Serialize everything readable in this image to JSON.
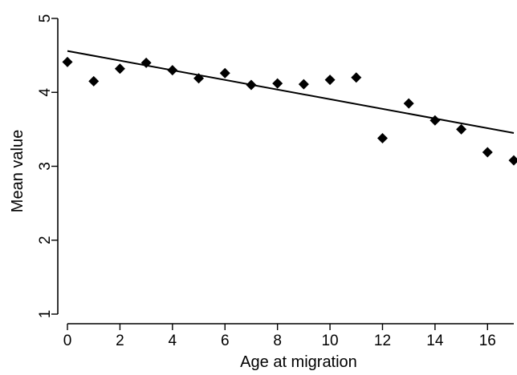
{
  "chart_data": {
    "type": "scatter",
    "title": "",
    "xlabel": "Age at migration",
    "ylabel": "Mean value",
    "xlim": [
      0,
      17
    ],
    "ylim": [
      1,
      5
    ],
    "xticks": [
      0,
      2,
      4,
      6,
      8,
      10,
      12,
      14,
      16
    ],
    "yticks": [
      1,
      2,
      3,
      4,
      5
    ],
    "xtick_labels": [
      "0",
      "2",
      "4",
      "6",
      "8",
      "10",
      "12",
      "14",
      "16"
    ],
    "ytick_labels": [
      "1",
      "2",
      "3",
      "4",
      "5"
    ],
    "grid": false,
    "marker": "diamond",
    "series": [
      {
        "x": [
          0,
          1,
          2,
          3,
          4,
          5,
          6,
          7,
          8,
          9,
          10,
          11,
          12,
          13,
          14,
          15,
          16,
          17
        ],
        "y": [
          4.41,
          4.15,
          4.32,
          4.4,
          4.3,
          4.19,
          4.26,
          4.1,
          4.12,
          4.11,
          4.17,
          4.2,
          3.38,
          3.85,
          3.62,
          3.5,
          3.19,
          3.08
        ]
      }
    ],
    "fit_line": {
      "x": [
        0,
        17
      ],
      "y": [
        4.56,
        3.45
      ]
    }
  }
}
